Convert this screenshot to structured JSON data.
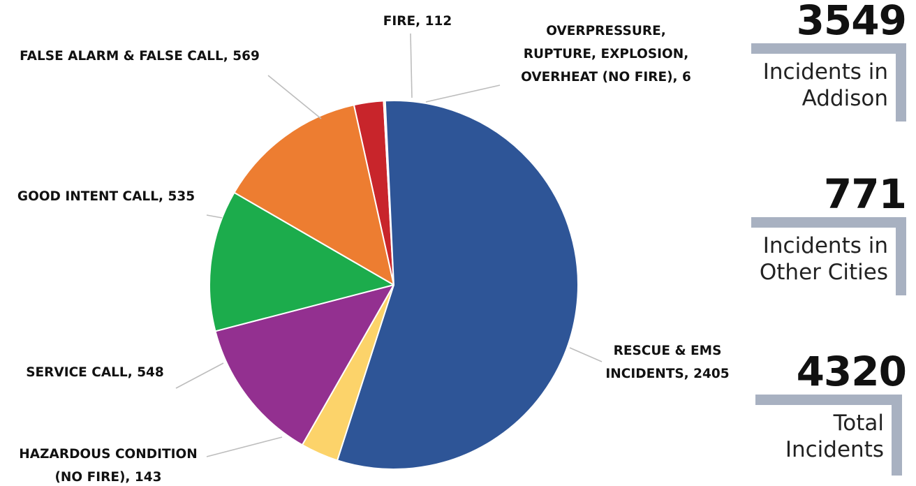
{
  "chart_data": {
    "type": "pie",
    "slices": [
      {
        "label": "FIRE, 112",
        "category": "FIRE",
        "value": 112,
        "color": "#c8252b"
      },
      {
        "label": "OVERPRESSURE, RUPTURE, EXPLOSION, OVERHEAT (NO FIRE), 6",
        "category": "OVERPRESSURE, RUPTURE, EXPLOSION, OVERHEAT (NO FIRE)",
        "value": 6,
        "color": "#f3c331"
      },
      {
        "label": "RESCUE & EMS INCIDENTS, 2405",
        "category": "RESCUE & EMS INCIDENTS",
        "value": 2405,
        "color": "#2e5597"
      },
      {
        "label": "HAZARDOUS CONDITION (NO FIRE), 143",
        "category": "HAZARDOUS CONDITION (NO FIRE)",
        "value": 143,
        "color": "#fcd36a"
      },
      {
        "label": "SERVICE CALL, 548",
        "category": "SERVICE CALL",
        "value": 548,
        "color": "#933090"
      },
      {
        "label": "GOOD INTENT CALL, 535",
        "category": "GOOD INTENT CALL",
        "value": 535,
        "color": "#1cac4c"
      },
      {
        "label": "FALSE ALARM & FALSE CALL, 569",
        "category": "FALSE ALARM & FALSE CALL",
        "value": 569,
        "color": "#ed7d31"
      }
    ],
    "legend": "none"
  },
  "stats": [
    {
      "value": "3549",
      "caption_line1": "Incidents in",
      "caption_line2": "Addison"
    },
    {
      "value": "771",
      "caption_line1": "Incidents in",
      "caption_line2": "Other Cities"
    },
    {
      "value": "4320",
      "caption_line1": "Total",
      "caption_line2": "Incidents"
    }
  ],
  "colors": {
    "bracket": "#a8b1c1",
    "leader": "#bdbdbd"
  }
}
